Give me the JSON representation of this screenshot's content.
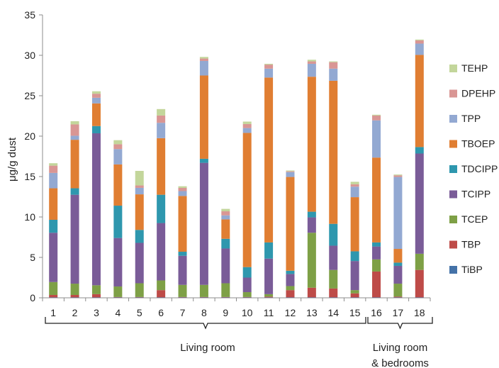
{
  "chart_data": {
    "type": "bar",
    "stacked": true,
    "title": "",
    "xlabel": "",
    "ylabel": "μg/g dust",
    "ylim": [
      0,
      35
    ],
    "yticks": [
      0,
      5,
      10,
      15,
      20,
      25,
      30,
      35
    ],
    "grid": false,
    "legend_position": "right",
    "categories": [
      "1",
      "2",
      "3",
      "4",
      "5",
      "6",
      "7",
      "8",
      "9",
      "10",
      "11",
      "12",
      "13",
      "14",
      "15",
      "16",
      "17",
      "18"
    ],
    "groups": [
      {
        "label": "Living room",
        "from": "1",
        "to": "15"
      },
      {
        "label": "Living room\n& bedrooms",
        "from": "16",
        "to": "18"
      }
    ],
    "series": [
      {
        "name": "TiBP",
        "color": "#4472A8",
        "values": [
          0.05,
          0.05,
          0.05,
          0.05,
          0.05,
          0.05,
          0.05,
          0.05,
          0.05,
          0.05,
          0.05,
          0.05,
          0.05,
          0.05,
          0.05,
          0.05,
          0.05,
          0.05
        ]
      },
      {
        "name": "TBP",
        "color": "#BE4B48",
        "values": [
          0.3,
          0.3,
          0.4,
          0.05,
          0.05,
          0.9,
          0.05,
          0.05,
          0.05,
          0.05,
          0.1,
          0.9,
          1.2,
          1.1,
          0.5,
          3.2,
          0.1,
          3.4
        ]
      },
      {
        "name": "TCEP",
        "color": "#7EA046",
        "values": [
          1.6,
          1.4,
          1.1,
          1.3,
          1.7,
          1.2,
          1.5,
          1.5,
          1.7,
          0.6,
          0.3,
          0.5,
          6.8,
          2.3,
          0.4,
          1.5,
          1.6,
          2.0
        ]
      },
      {
        "name": "TCIPP",
        "color": "#7A5C98",
        "values": [
          6.1,
          11.0,
          18.8,
          6.0,
          5.0,
          7.1,
          3.6,
          15.1,
          4.3,
          1.8,
          4.4,
          1.5,
          1.9,
          3.0,
          3.6,
          1.6,
          2.2,
          12.4
        ]
      },
      {
        "name": "TDCIPP",
        "color": "#2E97AE",
        "values": [
          1.6,
          0.8,
          0.9,
          4.0,
          1.6,
          3.5,
          0.5,
          0.5,
          1.2,
          1.3,
          2.0,
          0.4,
          0.7,
          2.7,
          1.2,
          0.5,
          0.4,
          0.8
        ]
      },
      {
        "name": "TBOEP",
        "color": "#E07E32",
        "values": [
          3.9,
          6.0,
          2.8,
          5.1,
          4.4,
          7.0,
          6.9,
          10.3,
          2.4,
          16.6,
          20.4,
          11.6,
          16.7,
          17.7,
          6.7,
          10.5,
          1.7,
          11.4
        ]
      },
      {
        "name": "TPP",
        "color": "#93A9D2",
        "values": [
          1.9,
          0.5,
          0.7,
          1.9,
          0.8,
          1.9,
          0.6,
          1.8,
          0.5,
          0.6,
          1.1,
          0.6,
          1.6,
          1.5,
          1.3,
          4.6,
          8.9,
          1.4
        ]
      },
      {
        "name": "DPEHP",
        "color": "#D99694",
        "values": [
          0.9,
          1.4,
          0.5,
          0.6,
          0.3,
          0.9,
          0.4,
          0.3,
          0.5,
          0.5,
          0.5,
          0.1,
          0.3,
          0.8,
          0.3,
          0.6,
          0.2,
          0.4
        ]
      },
      {
        "name": "TEHP",
        "color": "#C3D69B",
        "values": [
          0.3,
          0.4,
          0.3,
          0.5,
          1.8,
          0.8,
          0.2,
          0.2,
          0.3,
          0.3,
          0.1,
          0.1,
          0.2,
          0.1,
          0.3,
          0.1,
          0.1,
          0.1
        ]
      }
    ]
  }
}
